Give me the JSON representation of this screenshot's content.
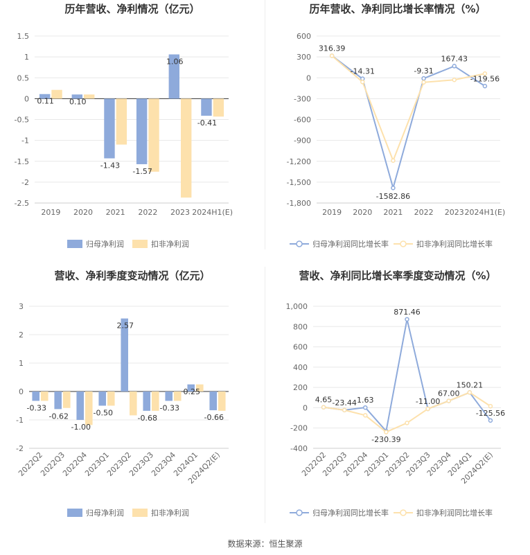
{
  "colors": {
    "blue": "#8eaadb",
    "orange": "#fde1ac",
    "grid": "#e8e8e8",
    "axis": "#cccccc",
    "text": "#666666",
    "title": "#333333"
  },
  "source": "数据来源：恒生聚源",
  "chart_data": [
    {
      "type": "bar",
      "title": "历年营收、净利情况（亿元）",
      "categories": [
        "2019",
        "2020",
        "2021",
        "2022",
        "2023",
        "2024H1(E)"
      ],
      "series": [
        {
          "name": "归母净利润",
          "values": [
            0.11,
            0.1,
            -1.43,
            -1.57,
            1.06,
            -0.41
          ],
          "labels": [
            "0.11",
            "0.10",
            "-1.43",
            "-1.57",
            "1.06",
            "-0.41"
          ]
        },
        {
          "name": "扣非净利润",
          "values": [
            0.21,
            0.1,
            -1.1,
            -1.75,
            -2.37,
            -0.43
          ]
        }
      ],
      "ylim": [
        -2.5,
        1.5
      ],
      "yticks": [
        "1.5",
        "1",
        "0.5",
        "0",
        "-0.5",
        "-1",
        "-1.5",
        "-2",
        "-2.5"
      ],
      "ytick_values": [
        1.5,
        1,
        0.5,
        0,
        -0.5,
        -1,
        -1.5,
        -2,
        -2.5
      ],
      "legend": "bottom"
    },
    {
      "type": "line",
      "title": "历年营收、净利同比增长率情况（%）",
      "categories": [
        "2019",
        "2020",
        "2021",
        "2022",
        "2023",
        "2024H1(E)"
      ],
      "series": [
        {
          "name": "归母净利润同比增长率",
          "values": [
            316.39,
            -14.31,
            -1582.86,
            -9.31,
            167.43,
            -119.56
          ],
          "labels": [
            "316.39",
            "-14.31",
            "-1582.86",
            "-9.31",
            "167.43",
            "-119.56"
          ]
        },
        {
          "name": "扣非净利润同比增长率",
          "values": [
            316.39,
            -60,
            -1190,
            -65,
            -30,
            60
          ]
        }
      ],
      "ylim": [
        -1800,
        600
      ],
      "yticks": [
        "600",
        "300",
        "0",
        "-300",
        "-600",
        "-900",
        "-1,200",
        "-1,500",
        "-1,800"
      ],
      "ytick_values": [
        600,
        300,
        0,
        -300,
        -600,
        -900,
        -1200,
        -1500,
        -1800
      ],
      "legend": "bottom"
    },
    {
      "type": "bar",
      "title": "营收、净利季度变动情况（亿元）",
      "categories": [
        "2022Q2",
        "2022Q3",
        "2022Q4",
        "2023Q1",
        "2023Q2",
        "2023Q3",
        "2023Q4",
        "2024Q1",
        "2024Q2(E)"
      ],
      "series": [
        {
          "name": "归母净利润",
          "values": [
            -0.33,
            -0.62,
            -1.0,
            -0.5,
            2.57,
            -0.68,
            -0.33,
            0.25,
            -0.66
          ],
          "labels": [
            "-0.33",
            "-0.62",
            "-1.00",
            "-0.50",
            "2.57",
            "-0.68",
            "-0.33",
            "0.25",
            "-0.66"
          ]
        },
        {
          "name": "扣非净利润",
          "values": [
            -0.33,
            -0.58,
            -1.18,
            -0.5,
            -0.84,
            -0.68,
            -0.33,
            0.25,
            -0.68
          ]
        }
      ],
      "ylim": [
        -2,
        3
      ],
      "yticks": [
        "3",
        "2",
        "1",
        "0",
        "-1",
        "-2"
      ],
      "ytick_values": [
        3,
        2,
        1,
        0,
        -1,
        -2
      ],
      "legend": "bottom"
    },
    {
      "type": "line",
      "title": "营收、净利同比增长率季度变动情况（%）",
      "categories": [
        "2022Q2",
        "2022Q3",
        "2022Q4",
        "2023Q1",
        "2023Q2",
        "2023Q3",
        "2023Q4",
        "2024Q1",
        "2024Q2(E)"
      ],
      "series": [
        {
          "name": "归母净利润同比增长率",
          "values": [
            4.65,
            -23.44,
            1.63,
            -230.39,
            871.46,
            -11.0,
            67.0,
            150.21,
            -125.56
          ],
          "labels": [
            "4.65",
            "-23.44",
            "1.63",
            "-230.39",
            "871.46",
            "-11.00",
            "67.00",
            "150.21",
            "-125.56"
          ]
        },
        {
          "name": "扣非净利润同比增长率",
          "values": [
            4.65,
            -23.44,
            -75,
            -240,
            -150,
            -11.0,
            67.0,
            150.21,
            15
          ]
        }
      ],
      "ylim": [
        -400,
        1000
      ],
      "yticks": [
        "1,000",
        "800",
        "600",
        "400",
        "200",
        "0",
        "-200",
        "-400"
      ],
      "ytick_values": [
        1000,
        800,
        600,
        400,
        200,
        0,
        -200,
        -400
      ],
      "legend": "bottom"
    }
  ]
}
